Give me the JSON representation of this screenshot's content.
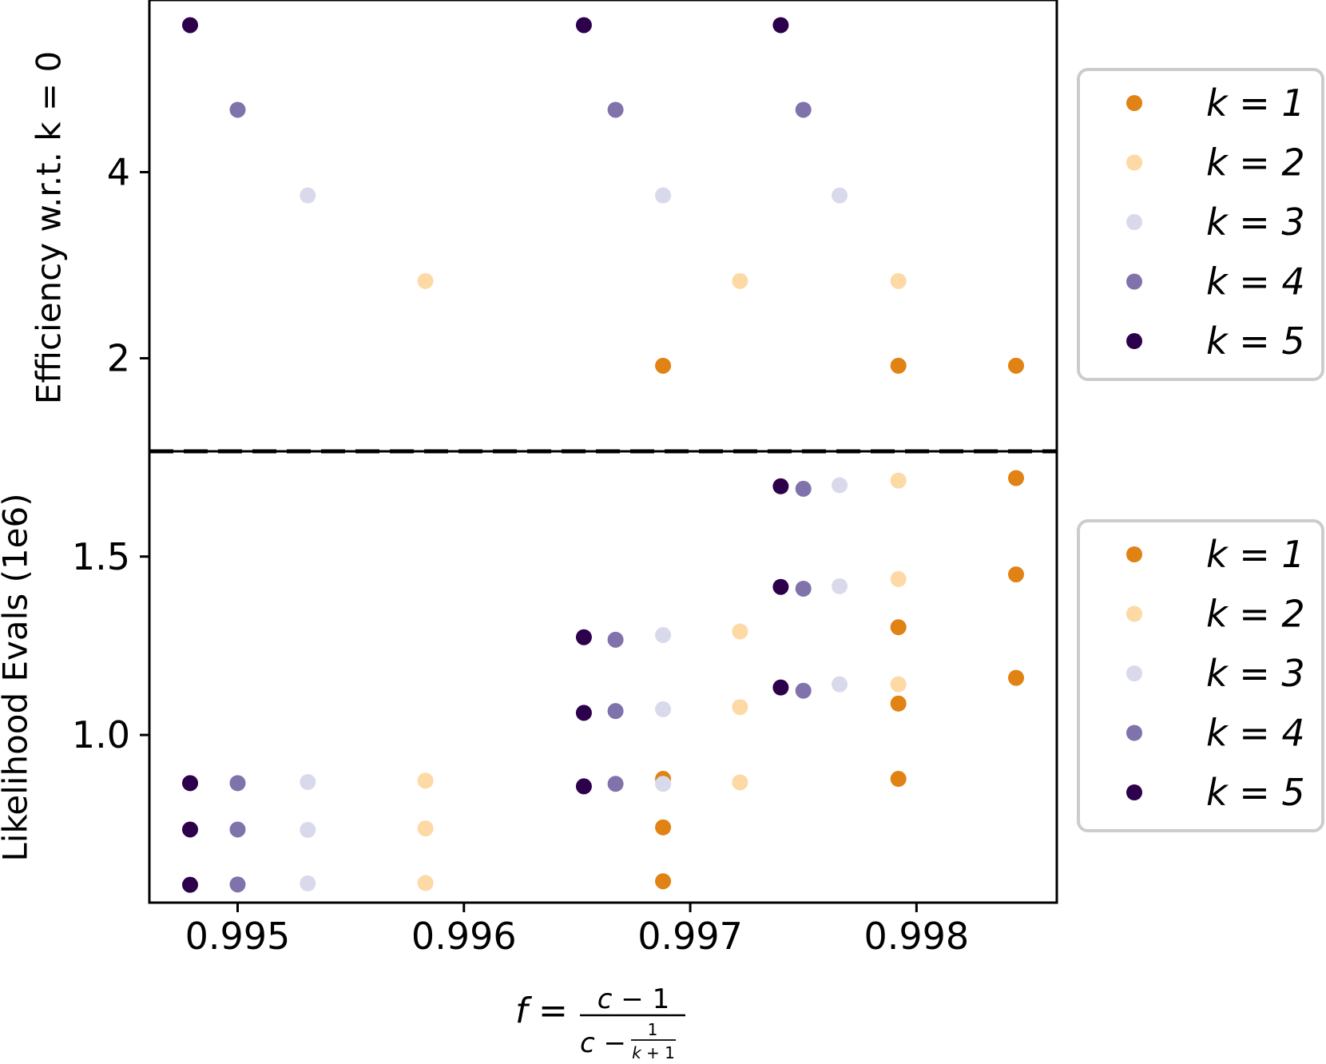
{
  "colors": {
    "k1": "#e08214",
    "k2": "#fdd9a6",
    "k3": "#d8daeb",
    "k4": "#8073ac",
    "k5": "#2d004b"
  },
  "chart_data": [
    {
      "type": "scatter",
      "title": "",
      "xlabel": "f = (c − 1) / (c − 1/(k+1))",
      "ylabel": "Efficiency w.r.t. k = 0",
      "xlim": [
        0.99461,
        0.99862
      ],
      "ylim": [
        1.0,
        5.85
      ],
      "yticks": [
        2,
        4
      ],
      "ytick_labels": [
        "2",
        "4"
      ],
      "reference_line": {
        "y": 1.0,
        "style": "dashed"
      },
      "legend": {
        "location": "right",
        "entries": [
          "k = 1",
          "k = 2",
          "k = 3",
          "k = 4",
          "k = 5"
        ]
      },
      "series": [
        {
          "name": "k = 1",
          "color_key": "k1",
          "points": [
            [
              0.99688,
              1.92
            ],
            [
              0.99792,
              1.92
            ],
            [
              0.99844,
              1.92
            ]
          ]
        },
        {
          "name": "k = 2",
          "color_key": "k2",
          "points": [
            [
              0.99583,
              2.83
            ],
            [
              0.99722,
              2.83
            ],
            [
              0.99792,
              2.83
            ]
          ]
        },
        {
          "name": "k = 3",
          "color_key": "k3",
          "points": [
            [
              0.99531,
              3.75
            ],
            [
              0.99688,
              3.75
            ],
            [
              0.99766,
              3.75
            ]
          ]
        },
        {
          "name": "k = 4",
          "color_key": "k4",
          "points": [
            [
              0.995,
              4.67
            ],
            [
              0.99667,
              4.67
            ],
            [
              0.9975,
              4.67
            ]
          ]
        },
        {
          "name": "k = 5",
          "color_key": "k5",
          "points": [
            [
              0.99479,
              5.58
            ],
            [
              0.99653,
              5.58
            ],
            [
              0.9974,
              5.58
            ]
          ]
        }
      ]
    },
    {
      "type": "scatter",
      "title": "",
      "xlabel": "f = (c − 1) / (c − 1/(k+1))",
      "ylabel": "Likelihood Evals (1e6)",
      "xlim": [
        0.99461,
        0.99862
      ],
      "ylim": [
        0.53,
        1.795
      ],
      "xticks": [
        0.995,
        0.996,
        0.997,
        0.998
      ],
      "xtick_labels": [
        "0.995",
        "0.996",
        "0.997",
        "0.998"
      ],
      "yticks": [
        1.0,
        1.5
      ],
      "ytick_labels": [
        "1.0",
        "1.5"
      ],
      "legend": {
        "location": "right",
        "entries": [
          "k = 1",
          "k = 2",
          "k = 3",
          "k = 4",
          "k = 5"
        ]
      },
      "series": [
        {
          "name": "k = 1",
          "color_key": "k1",
          "points": [
            [
              0.99688,
              0.59
            ],
            [
              0.99688,
              0.741
            ],
            [
              0.99688,
              0.877
            ],
            [
              0.99792,
              0.877
            ],
            [
              0.99792,
              1.088
            ],
            [
              0.99792,
              1.302
            ],
            [
              0.99844,
              1.16
            ],
            [
              0.99844,
              1.45
            ],
            [
              0.99844,
              1.72
            ]
          ]
        },
        {
          "name": "k = 2",
          "color_key": "k2",
          "points": [
            [
              0.99583,
              0.585
            ],
            [
              0.99583,
              0.738
            ],
            [
              0.99583,
              0.872
            ],
            [
              0.99722,
              0.867
            ],
            [
              0.99722,
              1.078
            ],
            [
              0.99722,
              1.29
            ],
            [
              0.99792,
              1.142
            ],
            [
              0.99792,
              1.437
            ],
            [
              0.99792,
              1.713
            ]
          ]
        },
        {
          "name": "k = 3",
          "color_key": "k3",
          "points": [
            [
              0.99531,
              0.584
            ],
            [
              0.99531,
              0.734
            ],
            [
              0.99531,
              0.868
            ],
            [
              0.99688,
              0.863
            ],
            [
              0.99688,
              1.072
            ],
            [
              0.99688,
              1.28
            ],
            [
              0.99766,
              1.142
            ],
            [
              0.99766,
              1.417
            ],
            [
              0.99766,
              1.7
            ]
          ]
        },
        {
          "name": "k = 4",
          "color_key": "k4",
          "points": [
            [
              0.995,
              0.581
            ],
            [
              0.995,
              0.735
            ],
            [
              0.995,
              0.865
            ],
            [
              0.99667,
              0.863
            ],
            [
              0.99667,
              1.067
            ],
            [
              0.99667,
              1.267
            ],
            [
              0.9975,
              1.124
            ],
            [
              0.9975,
              1.41
            ],
            [
              0.9975,
              1.69
            ]
          ]
        },
        {
          "name": "k = 5",
          "color_key": "k5",
          "points": [
            [
              0.99479,
              0.58
            ],
            [
              0.99479,
              0.735
            ],
            [
              0.99479,
              0.865
            ],
            [
              0.99653,
              0.856
            ],
            [
              0.99653,
              1.062
            ],
            [
              0.99653,
              1.274
            ],
            [
              0.9974,
              1.133
            ],
            [
              0.9974,
              1.415
            ],
            [
              0.9974,
              1.697
            ]
          ]
        }
      ]
    }
  ]
}
